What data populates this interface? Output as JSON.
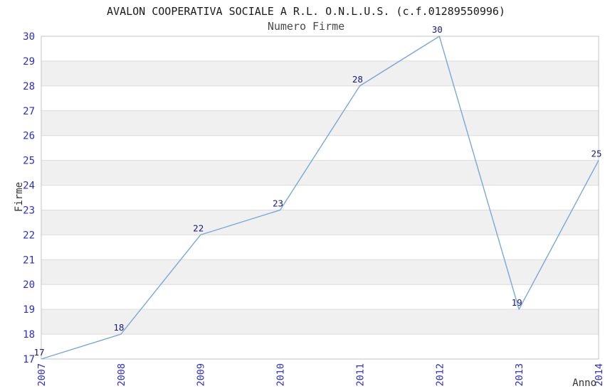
{
  "chart_data": {
    "type": "line",
    "title": "AVALON COOPERATIVA SOCIALE A R.L. O.N.L.U.S. (c.f.01289550996)",
    "subtitle": "Numero Firme",
    "xlabel": "Anno",
    "ylabel": "Firme",
    "categories": [
      "2007",
      "2008",
      "2009",
      "2010",
      "2011",
      "2012",
      "2013",
      "2014"
    ],
    "values": [
      17,
      18,
      22,
      23,
      28,
      30,
      19,
      25
    ],
    "ylim": [
      17,
      30
    ],
    "y_tick_step": 1,
    "grid": "horizontal-bands-alternating",
    "legend": "none",
    "markers": "none",
    "point_labels_shown": true,
    "colors": {
      "line": "#79a8d9",
      "tick_label": "#2c2cd0",
      "point_label": "#191984",
      "band": "#f0f0f0",
      "gridline": "#dcdcdc",
      "border": "#c4c4c4",
      "title": "#1a1a1a",
      "subtitle": "#4a4a4a",
      "axis_label": "#333333"
    }
  }
}
